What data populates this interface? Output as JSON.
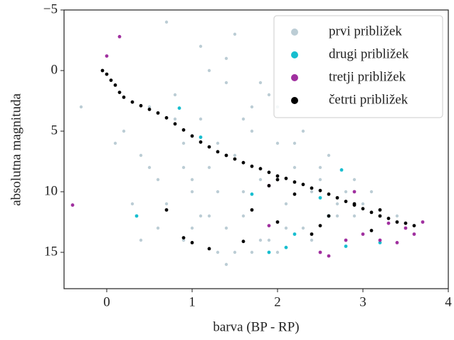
{
  "chart_data": {
    "type": "scatter",
    "xlabel": "barva (BP - RP)",
    "ylabel": "absolutna magnituda",
    "xlim": [
      -0.5,
      4
    ],
    "ylim": [
      18,
      -5
    ],
    "xticks": [
      0,
      1,
      2,
      3,
      4
    ],
    "yticks": [
      {
        "value": -5,
        "label": "−5"
      },
      0,
      5,
      10,
      15
    ],
    "legend": "upper right",
    "series": [
      {
        "name": "prvi približek",
        "color": "#bccdd5",
        "x": [
          0.2,
          0.4,
          0.5,
          0.6,
          0.7,
          0.8,
          0.9,
          1.0,
          1.1,
          1.2,
          1.3,
          1.4,
          1.5,
          1.6,
          1.7,
          1.8,
          1.9,
          2.0,
          2.1,
          2.2,
          2.3,
          2.4,
          2.5,
          2.6,
          2.7,
          2.8,
          0.3,
          0.6,
          0.9,
          1.2,
          1.5,
          1.8,
          2.1,
          2.4,
          2.7,
          3.0,
          0.5,
          0.8,
          1.1,
          1.4,
          1.7,
          2.0,
          2.3,
          2.6,
          2.9,
          1.0,
          1.3,
          1.6,
          1.9,
          2.2,
          1.2,
          1.5,
          1.8,
          0.9,
          1.4,
          1.3,
          1.6,
          1.1,
          2.0,
          2.5,
          3.1,
          -0.3,
          0.1,
          3.4,
          0.7,
          1.0,
          1.4,
          1.7,
          0.4,
          2.9
        ],
        "values": [
          5,
          7,
          3,
          9,
          11,
          2,
          6,
          13,
          4,
          8,
          10,
          1,
          7,
          12,
          5,
          9,
          14,
          6,
          11,
          8,
          13,
          10,
          9,
          12,
          11,
          10,
          11,
          13,
          14,
          12,
          15,
          14,
          13,
          14,
          12,
          11,
          8,
          4,
          -2,
          -1,
          3,
          3,
          5,
          7,
          9,
          10,
          6,
          4,
          2,
          6,
          0,
          -3,
          1,
          8,
          13,
          15,
          10,
          12,
          15,
          8,
          10,
          3,
          6,
          12,
          -4,
          9,
          16,
          15,
          14,
          12
        ]
      },
      {
        "name": "drugi približek",
        "color": "#17becf",
        "x": [
          0.35,
          0.85,
          1.1,
          1.7,
          2.2,
          2.5,
          2.6,
          2.8,
          1.9,
          2.1,
          3.2,
          2.75
        ],
        "values": [
          12,
          3.1,
          5.5,
          10.2,
          13.5,
          10.5,
          12,
          14.5,
          15,
          14.6,
          14.2,
          8.2
        ]
      },
      {
        "name": "tretji približek",
        "color": "#a0309f",
        "x": [
          -0.4,
          0.15,
          0.0,
          1.9,
          2.5,
          2.8,
          3.0,
          3.3,
          3.5,
          3.6,
          3.7,
          3.2,
          2.6,
          2.9,
          3.4,
          1.9
        ],
        "values": [
          11.1,
          -2.8,
          -1.2,
          12.8,
          15,
          14,
          13.5,
          12.6,
          13,
          13.5,
          12.5,
          14,
          15.3,
          10,
          14.2,
          9.5
        ]
      },
      {
        "name": "četrti približek",
        "color": "#000000",
        "x": [
          -0.05,
          0,
          0.05,
          0.1,
          0.15,
          0.2,
          0.3,
          0.4,
          0.5,
          0.6,
          0.7,
          0.8,
          0.9,
          1.0,
          1.1,
          1.2,
          1.3,
          1.4,
          1.5,
          1.6,
          1.7,
          1.8,
          1.9,
          2.0,
          2.1,
          2.2,
          2.3,
          2.4,
          2.5,
          2.6,
          2.7,
          2.8,
          2.9,
          3.0,
          3.1,
          3.2,
          3.3,
          3.4,
          3.5,
          3.6,
          0.7,
          0.9,
          1.0,
          1.7,
          1.9,
          2.0,
          2.2,
          2.4,
          2.6,
          1.2,
          1.6,
          2.5,
          3.1,
          3.2,
          2.9,
          2.0
        ],
        "values": [
          0,
          0.3,
          0.8,
          1.2,
          1.8,
          2.2,
          2.6,
          2.9,
          3.2,
          3.5,
          3.9,
          4.4,
          4.9,
          5.4,
          5.9,
          6.3,
          6.7,
          7.0,
          7.3,
          7.6,
          7.9,
          8.1,
          8.4,
          8.7,
          8.9,
          9.2,
          9.4,
          9.7,
          9.9,
          10.2,
          10.5,
          10.8,
          11.1,
          11.4,
          11.7,
          12.0,
          12.2,
          12.5,
          12.6,
          12.8,
          11.5,
          13.8,
          14.2,
          11.5,
          9.5,
          12.5,
          10.2,
          13.5,
          12.0,
          14.7,
          14.1,
          12.8,
          13.2,
          11.5,
          11.0,
          9.0
        ]
      }
    ]
  }
}
